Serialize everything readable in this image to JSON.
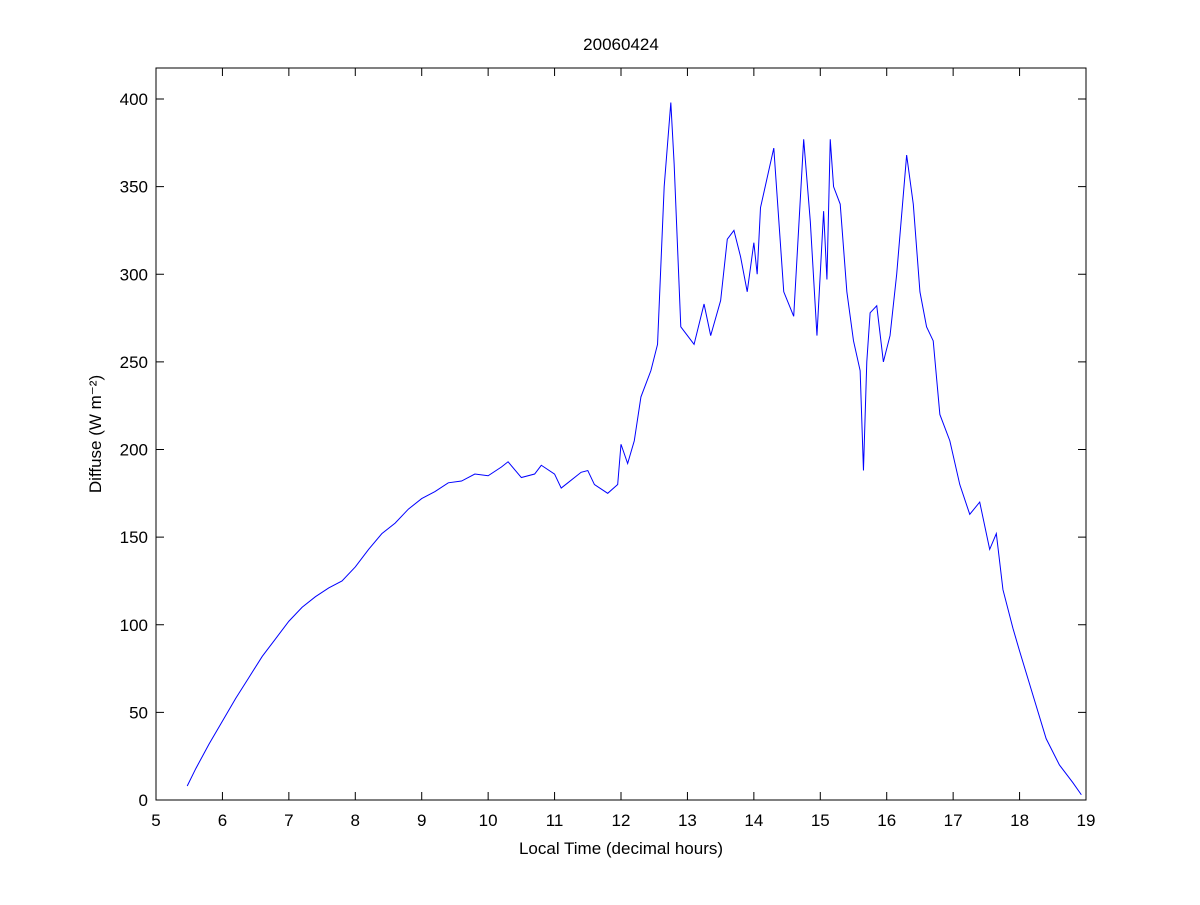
{
  "chart_data": {
    "type": "line",
    "title": "20060424",
    "xlabel": "Local Time (decimal hours)",
    "ylabel": "Diffuse (W m⁻²)",
    "x": [
      5.47,
      5.6,
      5.8,
      6.0,
      6.2,
      6.4,
      6.6,
      6.8,
      7.0,
      7.2,
      7.4,
      7.6,
      7.8,
      8.0,
      8.2,
      8.4,
      8.6,
      8.8,
      9.0,
      9.2,
      9.4,
      9.6,
      9.8,
      10.0,
      10.2,
      10.3,
      10.5,
      10.7,
      10.8,
      11.0,
      11.1,
      11.2,
      11.4,
      11.5,
      11.6,
      11.8,
      11.95,
      12.0,
      12.1,
      12.2,
      12.3,
      12.45,
      12.55,
      12.65,
      12.75,
      12.8,
      12.9,
      13.1,
      13.25,
      13.35,
      13.5,
      13.6,
      13.7,
      13.8,
      13.9,
      14.0,
      14.05,
      14.1,
      14.2,
      14.3,
      14.45,
      14.6,
      14.75,
      14.85,
      14.95,
      15.05,
      15.1,
      15.15,
      15.2,
      15.3,
      15.4,
      15.5,
      15.6,
      15.65,
      15.7,
      15.75,
      15.85,
      15.95,
      16.05,
      16.15,
      16.3,
      16.4,
      16.5,
      16.6,
      16.7,
      16.8,
      16.95,
      17.1,
      17.25,
      17.4,
      17.55,
      17.65,
      17.75,
      17.9,
      18.0,
      18.2,
      18.4,
      18.6,
      18.8,
      18.93
    ],
    "series": [
      {
        "color": "#0000ff",
        "values": [
          8,
          18,
          32,
          45,
          58,
          70,
          82,
          92,
          102,
          110,
          116,
          121,
          125,
          133,
          143,
          152,
          158,
          166,
          172,
          176,
          181,
          182,
          186,
          185,
          190,
          193,
          184,
          186,
          191,
          186,
          178,
          181,
          187,
          188,
          180,
          175,
          180,
          203,
          192,
          205,
          230,
          245,
          260,
          350,
          398,
          363,
          270,
          260,
          283,
          265,
          285,
          320,
          325,
          310,
          290,
          318,
          300,
          338,
          355,
          372,
          290,
          276,
          377,
          330,
          265,
          336,
          297,
          377,
          350,
          340,
          290,
          262,
          245,
          188,
          250,
          278,
          282,
          250,
          265,
          300,
          368,
          340,
          290,
          270,
          262,
          220,
          205,
          180,
          163,
          170,
          143,
          152,
          120,
          98,
          85,
          60,
          35,
          20,
          10,
          3
        ]
      }
    ],
    "xlim": [
      5,
      19
    ],
    "xticks": [
      5,
      6,
      7,
      8,
      9,
      10,
      11,
      12,
      13,
      14,
      15,
      16,
      17,
      18,
      19
    ],
    "ylim": [
      0,
      400
    ],
    "yticks": [
      0,
      50,
      100,
      150,
      200,
      250,
      300,
      350,
      400
    ],
    "grid": false
  }
}
